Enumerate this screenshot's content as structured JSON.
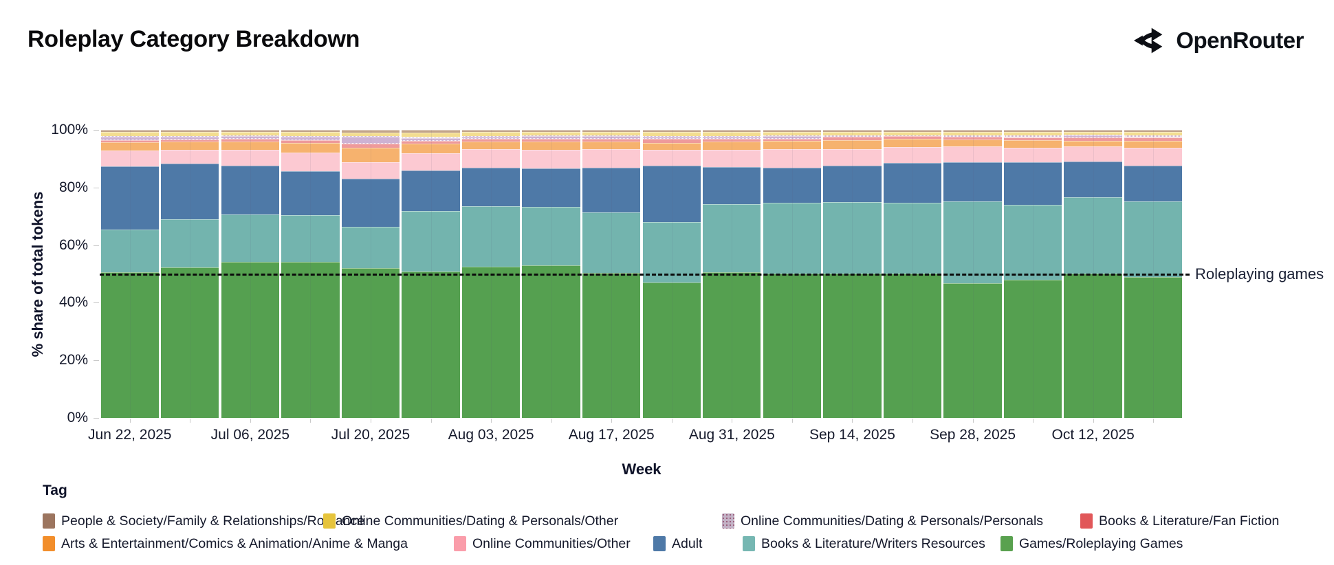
{
  "header": {
    "title": "Roleplay Category Breakdown",
    "brand": "OpenRouter"
  },
  "annotation_label": "Roleplaying games",
  "legend_title": "Tag",
  "chart_data": {
    "type": "bar",
    "stacked": true,
    "title": "Roleplay Category Breakdown",
    "xlabel": "Week",
    "ylabel": "% share of total tokens",
    "ylim": [
      0,
      100
    ],
    "grid": false,
    "y_ticks": [
      0,
      20,
      40,
      60,
      80,
      100
    ],
    "y_tick_labels": [
      "0%",
      "20%",
      "40%",
      "60%",
      "80%",
      "100%"
    ],
    "categories": [
      "Jun 22, 2025",
      "Jun 29, 2025",
      "Jul 06, 2025",
      "Jul 13, 2025",
      "Jul 20, 2025",
      "Jul 27, 2025",
      "Aug 03, 2025",
      "Aug 10, 2025",
      "Aug 17, 2025",
      "Aug 24, 2025",
      "Aug 31, 2025",
      "Sep 07, 2025",
      "Sep 14, 2025",
      "Sep 21, 2025",
      "Sep 28, 2025",
      "Oct 05, 2025",
      "Oct 12, 2025",
      "Oct 19, 2025"
    ],
    "x_tick_label_every": 2,
    "annotation": {
      "label": "Roleplaying games",
      "y": 50,
      "line_style": "dashed",
      "line_color": "#0b0b0b"
    },
    "series_bottom_to_top": [
      {
        "name": "Games/Roleplaying Games",
        "legend_color": "#59a14f",
        "bar_color": "#55a050",
        "values": [
          50.5,
          52.3,
          54.2,
          54.2,
          52.0,
          50.9,
          52.4,
          52.9,
          50.4,
          47.1,
          50.7,
          50.2,
          50.2,
          50.1,
          46.9,
          47.9,
          50.2,
          49.0
        ]
      },
      {
        "name": "Books & Literature/Writers Resources",
        "legend_color": "#76b7b2",
        "bar_color": "#73b4ae",
        "values": [
          14.8,
          16.6,
          16.5,
          16.3,
          14.4,
          20.9,
          21.2,
          20.4,
          20.9,
          21.0,
          23.6,
          24.5,
          24.7,
          24.7,
          28.4,
          26.0,
          26.4,
          26.2
        ]
      },
      {
        "name": "Adult",
        "legend_color": "#4e79a7",
        "bar_color": "#4e79a7",
        "values": [
          22.1,
          19.5,
          17.0,
          15.2,
          16.6,
          14.2,
          13.3,
          13.3,
          15.6,
          19.4,
          12.9,
          12.2,
          12.6,
          13.7,
          13.5,
          14.8,
          12.5,
          12.5
        ]
      },
      {
        "name": "Online Communities/Other",
        "legend_color": "#fa9daa",
        "bar_color": "#fcc9d2",
        "values": [
          5.4,
          4.7,
          5.3,
          6.5,
          5.7,
          5.8,
          6.4,
          6.4,
          6.4,
          5.5,
          6.0,
          6.4,
          5.8,
          5.5,
          5.4,
          5.2,
          5.1,
          6.1
        ]
      },
      {
        "name": "Arts & Entertainment/Comics & Animation/Anime & Manga",
        "legend_color": "#f28e2b",
        "bar_color": "#f6b26e",
        "values": [
          2.8,
          2.8,
          3.0,
          3.2,
          5.1,
          3.5,
          2.6,
          3.0,
          2.7,
          2.4,
          2.7,
          2.8,
          3.2,
          2.8,
          2.4,
          2.5,
          2.0,
          2.5
        ]
      },
      {
        "name": "Books & Literature/Fan Fiction",
        "legend_color": "#e15759",
        "bar_color": "#ee9a9b",
        "values": [
          0.8,
          0.8,
          0.8,
          1.1,
          1.4,
          1.0,
          1.0,
          1.0,
          1.0,
          1.5,
          0.9,
          0.9,
          1.1,
          1.0,
          1.1,
          1.1,
          1.1,
          1.2
        ]
      },
      {
        "name": "Online Communities/Dating & Personals/Personals",
        "legend_color": "#c3b2c6",
        "bar_color": "#cdb2d3",
        "values": [
          1.5,
          1.2,
          1.2,
          1.3,
          2.6,
          1.2,
          1.0,
          1.0,
          1.0,
          1.0,
          1.1,
          1.0,
          0.6,
          0.4,
          0.5,
          0.6,
          1.0,
          0.7
        ]
      },
      {
        "name": "Online Communities/Dating & Personals/Other",
        "legend_color": "#e6c43c",
        "bar_color": "#f3dd90",
        "values": [
          1.4,
          1.3,
          1.3,
          1.4,
          1.2,
          1.5,
          1.3,
          1.2,
          1.3,
          1.4,
          1.3,
          1.3,
          1.2,
          1.2,
          1.2,
          1.2,
          1.1,
          1.2
        ]
      },
      {
        "name": "People & Society/Family & Relationships/Romance",
        "legend_color": "#9c755f",
        "bar_color": "#c2a58b",
        "values": [
          0.7,
          0.8,
          0.7,
          0.8,
          1.0,
          1.0,
          0.8,
          0.8,
          0.7,
          0.7,
          0.8,
          0.7,
          0.6,
          0.6,
          0.6,
          0.7,
          0.6,
          0.6
        ]
      }
    ],
    "legend_position": "bottom",
    "legend_rows": [
      [
        "People & Society/Family & Relationships/Romance",
        "Online Communities/Dating & Personals/Other",
        "Online Communities/Dating & Personals/Personals",
        "Books & Literature/Fan Fiction"
      ],
      [
        "Arts & Entertainment/Comics & Animation/Anime & Manga",
        "Online Communities/Other",
        "Adult",
        "Books & Literature/Writers Resources",
        "Games/Roleplaying Games"
      ]
    ]
  }
}
